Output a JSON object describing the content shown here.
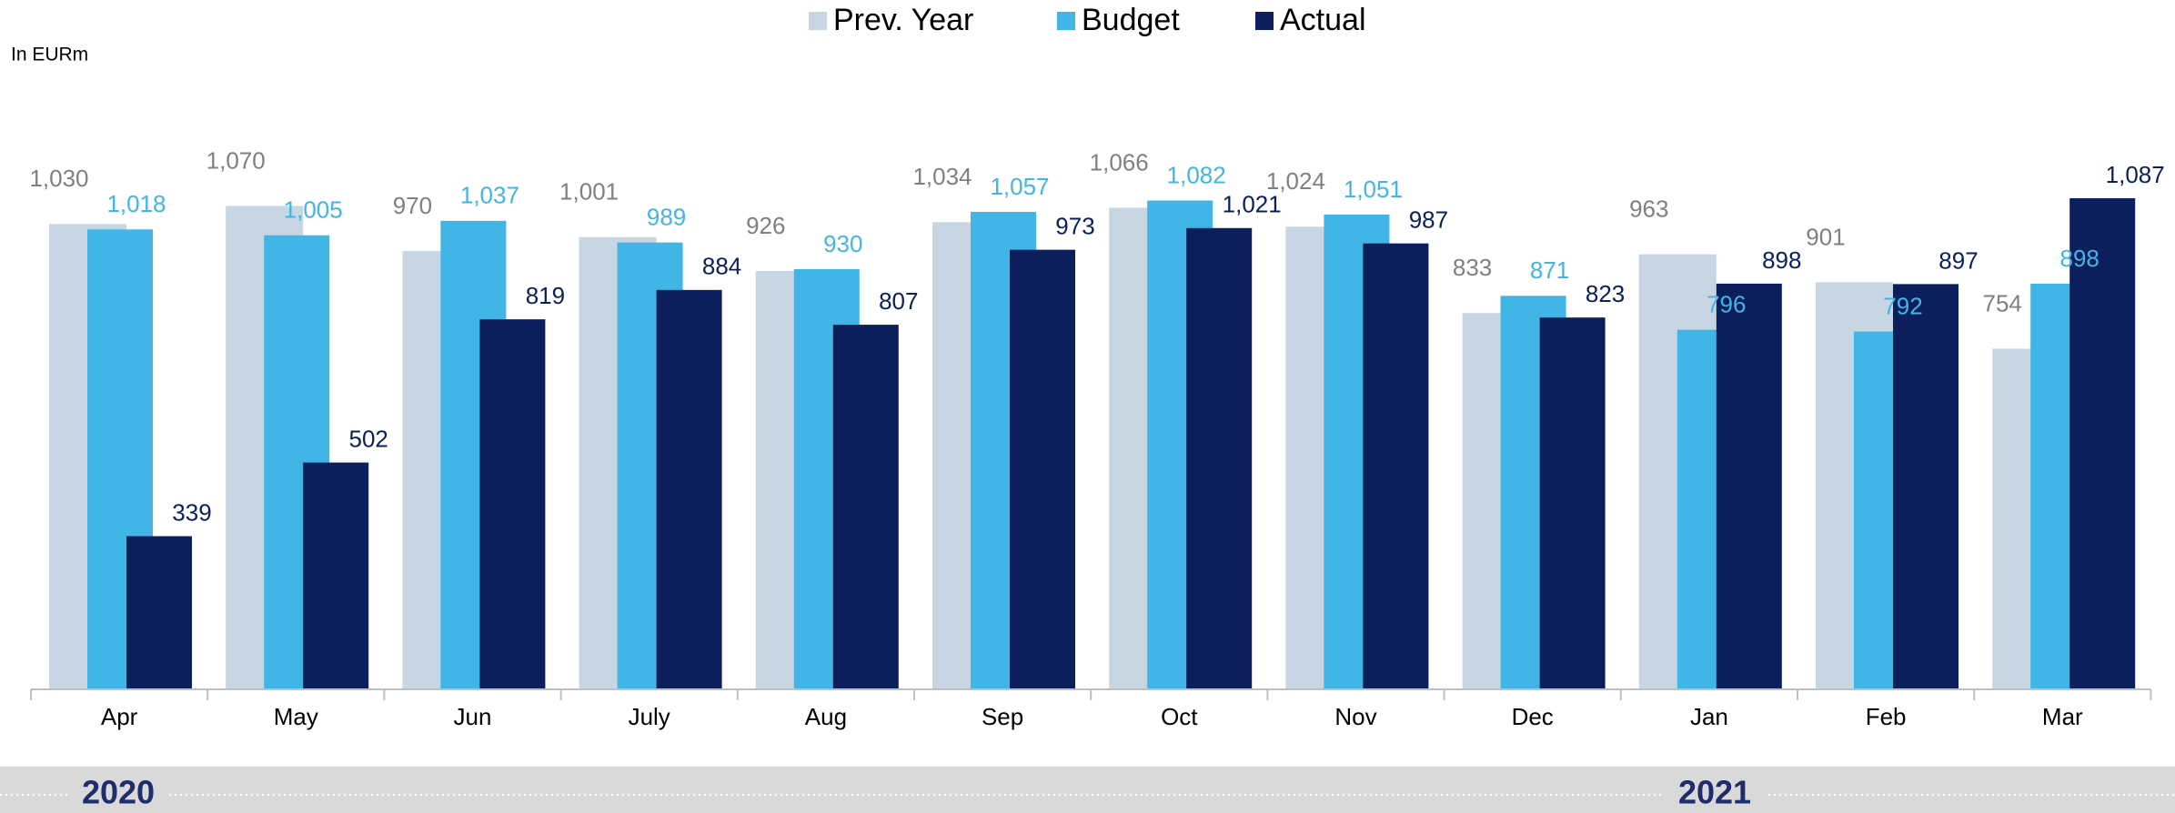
{
  "chart_data": {
    "type": "bar",
    "unit_label": "In EURm",
    "categories": [
      "Apr",
      "May",
      "Jun",
      "July",
      "Aug",
      "Sep",
      "Oct",
      "Nov",
      "Dec",
      "Jan",
      "Feb",
      "Mar"
    ],
    "series": [
      {
        "name": "Prev. Year",
        "color": "#c8d6e3",
        "label_color": "#808080",
        "values": [
          1030,
          1070,
          970,
          1001,
          926,
          1034,
          1066,
          1024,
          833,
          963,
          901,
          754
        ],
        "value_labels": [
          "1,030",
          "1,070",
          "970",
          "1,001",
          "926",
          "1,034",
          "1,066",
          "1,024",
          "833",
          "963",
          "901",
          "754"
        ]
      },
      {
        "name": "Budget",
        "color": "#41b5e6",
        "label_color": "#41b5e6",
        "values": [
          1018,
          1005,
          1037,
          989,
          930,
          1057,
          1082,
          1051,
          871,
          796,
          792,
          898
        ],
        "value_labels": [
          "1,018",
          "1,005",
          "1,037",
          "989",
          "930",
          "1,057",
          "1,082",
          "1,051",
          "871",
          "796",
          "792",
          "898"
        ]
      },
      {
        "name": "Actual",
        "color": "#0c1f5c",
        "label_color": "#0c1f5c",
        "values": [
          339,
          502,
          819,
          884,
          807,
          973,
          1021,
          987,
          823,
          898,
          897,
          1087
        ],
        "value_labels": [
          "339",
          "502",
          "819",
          "884",
          "807",
          "973",
          "1,021",
          "987",
          "823",
          "898",
          "897",
          "1,087"
        ]
      }
    ],
    "period_labels": [
      "2020",
      "2021"
    ]
  }
}
